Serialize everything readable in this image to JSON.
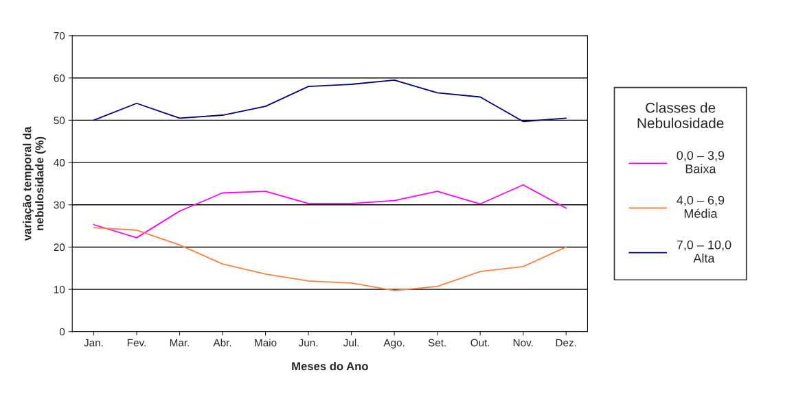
{
  "chart_data": {
    "type": "line",
    "xlabel": "Meses do Ano",
    "ylabel": "variação temporal da\nnebulosidade (%)",
    "legend_title": "Classes de\nNebulosidade",
    "categories": [
      "Jan.",
      "Fev.",
      "Mar.",
      "Abr.",
      "Maio",
      "Jun.",
      "Jul.",
      "Ago.",
      "Set.",
      "Out.",
      "Nov.",
      "Dez."
    ],
    "series": [
      {
        "name": "0,0 – 3,9\nBaixa",
        "color": "#ff00ff",
        "values": [
          25.3,
          22.2,
          28.5,
          32.8,
          33.2,
          30.3,
          30.3,
          31,
          33.2,
          30.2,
          34.7,
          29.2
        ]
      },
      {
        "name": "4,0 – 6,9\nMédia",
        "color": "#ff8040",
        "values": [
          24.6,
          24,
          20.5,
          16,
          13.6,
          12,
          11.5,
          9.7,
          10.7,
          14.2,
          15.4,
          20
        ]
      },
      {
        "name": "7,0 – 10,0\nAlta",
        "color": "#000080",
        "values": [
          50,
          54,
          50.5,
          51.2,
          53.3,
          58,
          58.5,
          59.5,
          56.5,
          55.5,
          49.7,
          50.5
        ]
      }
    ],
    "ylim": [
      0,
      70
    ],
    "yticks": [
      0,
      10,
      20,
      30,
      40,
      50,
      60,
      70
    ],
    "grid": "y",
    "legend": "right",
    "marker": "none",
    "line_style": "solid"
  }
}
